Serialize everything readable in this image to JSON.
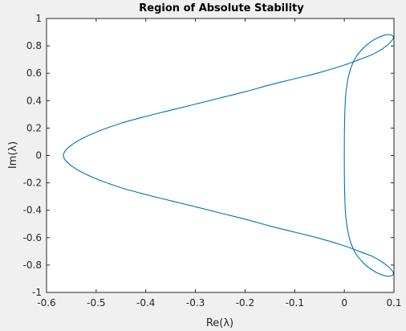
{
  "chart_data": {
    "type": "line",
    "title": "Region of Absolute Stability",
    "xlabel": "Re(λ)",
    "ylabel": "Im(λ)",
    "xlim": [
      -0.6,
      0.1
    ],
    "ylim": [
      -1,
      1
    ],
    "xticks": [
      -0.6,
      -0.5,
      -0.4,
      -0.3,
      -0.2,
      -0.1,
      0,
      0.1
    ],
    "xtick_labels": [
      "-0.6",
      "-0.5",
      "-0.4",
      "-0.3",
      "-0.2",
      "-0.1",
      "0",
      "0.1"
    ],
    "yticks": [
      -1,
      -0.8,
      -0.6,
      -0.4,
      -0.2,
      0,
      0.2,
      0.4,
      0.6,
      0.8,
      1
    ],
    "ytick_labels": [
      "-1",
      "-0.8",
      "-0.6",
      "-0.4",
      "-0.2",
      "0",
      "0.2",
      "0.4",
      "0.6",
      "0.8",
      "1"
    ],
    "grid": false,
    "line_color": "#0072bd",
    "series": [
      {
        "x": [
          0,
          0.0005,
          0.003,
          0.01,
          0.022,
          0.04,
          0.06,
          0.078,
          0.09,
          0.097,
          0.099,
          0.096,
          0.088,
          0.075,
          0.055,
          0.03,
          0.0,
          -0.05,
          -0.1,
          -0.15,
          -0.2,
          -0.25,
          -0.3,
          -0.35,
          -0.4,
          -0.45,
          -0.5,
          -0.53,
          -0.55,
          -0.562,
          -0.566,
          -0.562,
          -0.55,
          -0.53,
          -0.5,
          -0.45,
          -0.4,
          -0.35,
          -0.3,
          -0.25,
          -0.2,
          -0.15,
          -0.1,
          -0.05,
          0.0,
          0.03,
          0.055,
          0.075,
          0.088,
          0.096,
          0.099,
          0.097,
          0.09,
          0.078,
          0.06,
          0.04,
          0.022,
          0.01,
          0.003,
          0.0005,
          0
        ],
        "y": [
          0,
          0.25,
          0.45,
          0.6,
          0.71,
          0.79,
          0.845,
          0.875,
          0.882,
          0.875,
          0.86,
          0.84,
          0.81,
          0.775,
          0.735,
          0.7,
          0.66,
          0.605,
          0.56,
          0.515,
          0.465,
          0.42,
          0.375,
          0.33,
          0.285,
          0.235,
          0.17,
          0.12,
          0.075,
          0.035,
          0,
          -0.035,
          -0.075,
          -0.12,
          -0.17,
          -0.235,
          -0.285,
          -0.33,
          -0.375,
          -0.42,
          -0.465,
          -0.515,
          -0.56,
          -0.605,
          -0.66,
          -0.7,
          -0.735,
          -0.775,
          -0.81,
          -0.84,
          -0.86,
          -0.875,
          -0.882,
          -0.875,
          -0.845,
          -0.79,
          -0.71,
          -0.6,
          -0.45,
          -0.25,
          0
        ]
      }
    ]
  }
}
